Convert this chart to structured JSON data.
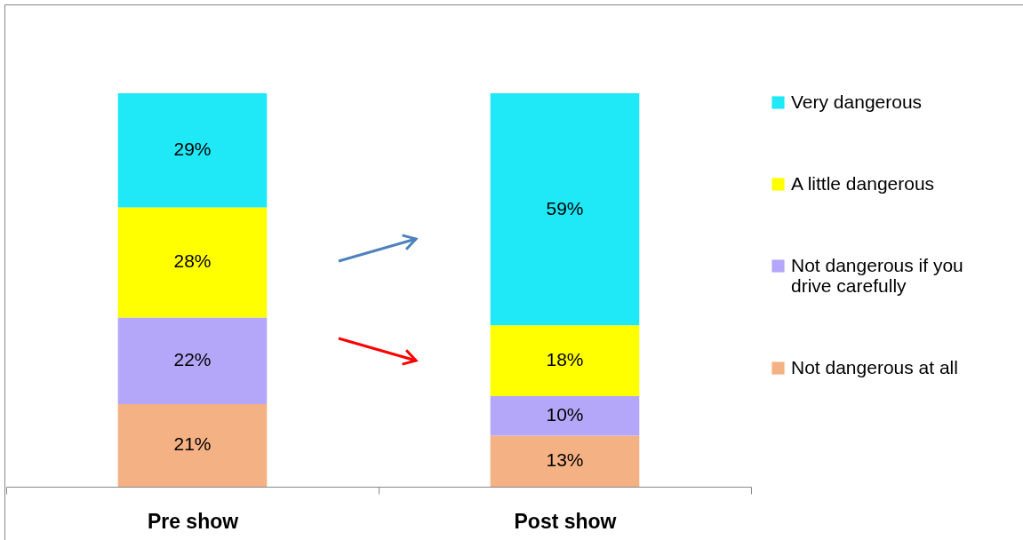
{
  "chart_data": {
    "type": "bar",
    "stacked": true,
    "legend": "right",
    "categories": [
      "Pre show",
      "Post show"
    ],
    "series": [
      {
        "name": "Not dangerous at all",
        "color": "#f4b183",
        "values": [
          21,
          13
        ],
        "value_labels": [
          "21%",
          "13%"
        ]
      },
      {
        "name": "Not dangerous if you drive carefully",
        "color": "#b4a7fa",
        "values": [
          22,
          10
        ],
        "value_labels": [
          "22%",
          "10%"
        ]
      },
      {
        "name": "A little dangerous",
        "color": "#ffff00",
        "values": [
          28,
          18
        ],
        "value_labels": [
          "28%",
          "18%"
        ]
      },
      {
        "name": "Very dangerous",
        "color": "#1fe8f7",
        "values": [
          29,
          59
        ],
        "value_labels": [
          "29%",
          "59%"
        ]
      }
    ]
  }
}
